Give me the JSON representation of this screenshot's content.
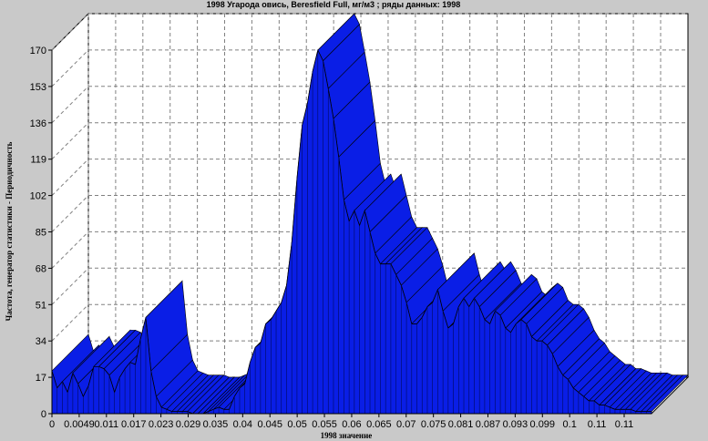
{
  "chart_data": {
    "type": "area",
    "title": "1998 Угарода овись, Beresfield Full,  мг/м3 ; ряды данных: 1998",
    "xlabel": "1998  значение",
    "ylabel": "Частота, генератор статистики - Периодичность",
    "ylim": [
      0,
      170
    ],
    "yticks": [
      "0",
      "17",
      "34",
      "51",
      "68",
      "85",
      "102",
      "119",
      "136",
      "153",
      "170"
    ],
    "xticks": [
      "0",
      "0.0049",
      "0.011",
      "0.017",
      "0.023",
      "0.029",
      "0.035",
      "0.04",
      "0.045",
      "0.05",
      "0.055",
      "0.06",
      "0.065",
      "0.07",
      "0.075",
      "0.081",
      "0.087",
      "0.093",
      "0.099",
      "0.1",
      "0.11",
      "0.11"
    ],
    "grid": true,
    "series": [
      {
        "color": "#0a1ee6",
        "x": [
          0.0,
          0.001,
          0.002,
          0.003,
          0.004,
          0.005,
          0.006,
          0.007,
          0.008,
          0.009,
          0.01,
          0.011,
          0.012,
          0.013,
          0.014,
          0.015,
          0.016,
          0.017,
          0.018,
          0.019,
          0.02,
          0.021,
          0.022,
          0.023,
          0.024,
          0.025,
          0.026,
          0.027,
          0.028,
          0.029,
          0.03,
          0.031,
          0.032,
          0.033,
          0.034,
          0.035,
          0.036,
          0.037,
          0.038,
          0.039,
          0.04,
          0.041,
          0.042,
          0.043,
          0.044,
          0.045,
          0.046,
          0.047,
          0.048,
          0.049,
          0.05,
          0.051,
          0.052,
          0.053,
          0.054,
          0.055,
          0.056,
          0.057,
          0.058,
          0.059,
          0.06,
          0.061,
          0.062,
          0.063,
          0.064,
          0.065,
          0.066,
          0.067,
          0.068,
          0.069,
          0.07,
          0.071,
          0.072,
          0.073,
          0.074,
          0.075,
          0.076,
          0.077,
          0.078,
          0.079,
          0.08,
          0.081,
          0.082,
          0.083,
          0.084,
          0.085,
          0.086,
          0.087,
          0.088,
          0.089,
          0.09,
          0.091,
          0.092,
          0.093,
          0.094,
          0.095,
          0.096,
          0.097,
          0.098,
          0.099,
          0.1,
          0.101,
          0.102,
          0.103,
          0.104,
          0.105,
          0.106,
          0.107,
          0.108,
          0.109,
          0.11,
          0.111,
          0.112,
          0.113,
          0.114,
          0.115
        ],
        "values": [
          20,
          12,
          15,
          10,
          19,
          14,
          8,
          13,
          22,
          22,
          21,
          18,
          10,
          17,
          21,
          24,
          23,
          35,
          45,
          20,
          8,
          3,
          2,
          1,
          1,
          1,
          1,
          0,
          0,
          0,
          1,
          2,
          3,
          2,
          2,
          8,
          12,
          14,
          24,
          31,
          33,
          42,
          44,
          48,
          52,
          60,
          80,
          110,
          135,
          145,
          160,
          170,
          165,
          152,
          138,
          120,
          100,
          90,
          95,
          88,
          95,
          85,
          75,
          70,
          70,
          70,
          65,
          60,
          52,
          42,
          42,
          45,
          50,
          52,
          58,
          48,
          40,
          42,
          50,
          54,
          50,
          54,
          50,
          44,
          42,
          48,
          46,
          40,
          38,
          42,
          44,
          42,
          36,
          34,
          34,
          32,
          28,
          22,
          18,
          16,
          12,
          10,
          8,
          6,
          6,
          4,
          4,
          3,
          2,
          2,
          2,
          2,
          1,
          1,
          1,
          1
        ]
      }
    ]
  }
}
